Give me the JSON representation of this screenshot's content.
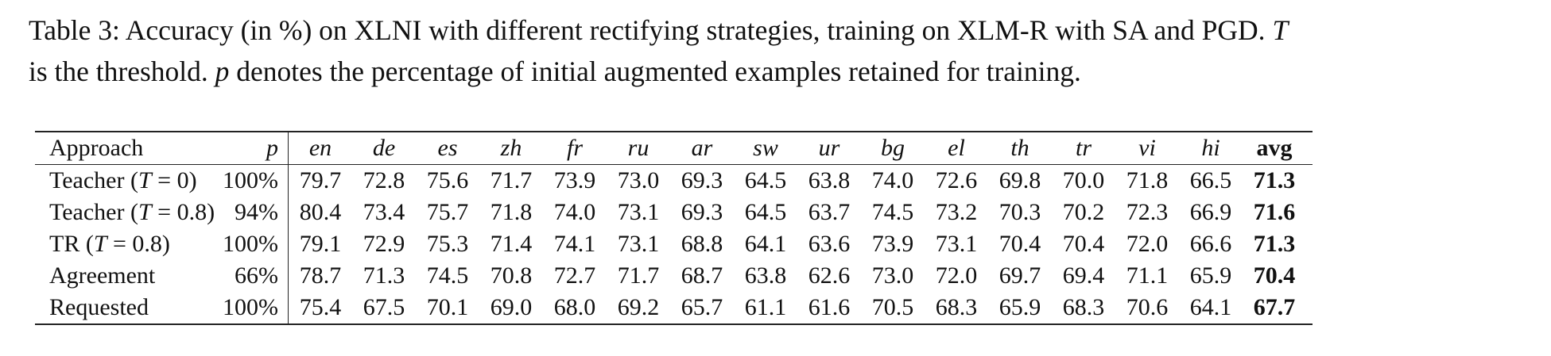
{
  "caption": {
    "line1_a": "Table 3: Accuracy (in %) on XLNI with different rectifying strategies, training on XLM-R with SA and PGD. ",
    "line1_T": "T",
    "line2_a": "is the threshold. ",
    "line2_p": "p",
    "line2_b": " denotes the percentage of initial augmented examples retained for training."
  },
  "table": {
    "header": {
      "approach": "Approach",
      "p": "p",
      "langs": [
        "en",
        "de",
        "es",
        "zh",
        "fr",
        "ru",
        "ar",
        "sw",
        "ur",
        "bg",
        "el",
        "th",
        "tr",
        "vi",
        "hi"
      ],
      "avg": "avg"
    },
    "rows": [
      {
        "name_pre": "Teacher (",
        "name_T": "T",
        "name_post": " = 0)",
        "p": "100%",
        "values": [
          "79.7",
          "72.8",
          "75.6",
          "71.7",
          "73.9",
          "73.0",
          "69.3",
          "64.5",
          "63.8",
          "74.0",
          "72.6",
          "69.8",
          "70.0",
          "71.8",
          "66.5"
        ],
        "avg": "71.3"
      },
      {
        "name_pre": "Teacher (",
        "name_T": "T",
        "name_post": " = 0.8)",
        "p": "94%",
        "values": [
          "80.4",
          "73.4",
          "75.7",
          "71.8",
          "74.0",
          "73.1",
          "69.3",
          "64.5",
          "63.7",
          "74.5",
          "73.2",
          "70.3",
          "70.2",
          "72.3",
          "66.9"
        ],
        "avg": "71.6"
      },
      {
        "name_pre": "TR (",
        "name_T": "T",
        "name_post": " = 0.8)",
        "p": "100%",
        "values": [
          "79.1",
          "72.9",
          "75.3",
          "71.4",
          "74.1",
          "73.1",
          "68.8",
          "64.1",
          "63.6",
          "73.9",
          "73.1",
          "70.4",
          "70.4",
          "72.0",
          "66.6"
        ],
        "avg": "71.3"
      },
      {
        "name_pre": "Agreement",
        "name_T": "",
        "name_post": "",
        "p": "66%",
        "values": [
          "78.7",
          "71.3",
          "74.5",
          "70.8",
          "72.7",
          "71.7",
          "68.7",
          "63.8",
          "62.6",
          "73.0",
          "72.0",
          "69.7",
          "69.4",
          "71.1",
          "65.9"
        ],
        "avg": "70.4"
      },
      {
        "name_pre": "Requested",
        "name_T": "",
        "name_post": "",
        "p": "100%",
        "values": [
          "75.4",
          "67.5",
          "70.1",
          "69.0",
          "68.0",
          "69.2",
          "65.7",
          "61.1",
          "61.6",
          "70.5",
          "68.3",
          "65.9",
          "68.3",
          "70.6",
          "64.1"
        ],
        "avg": "67.7"
      }
    ]
  }
}
